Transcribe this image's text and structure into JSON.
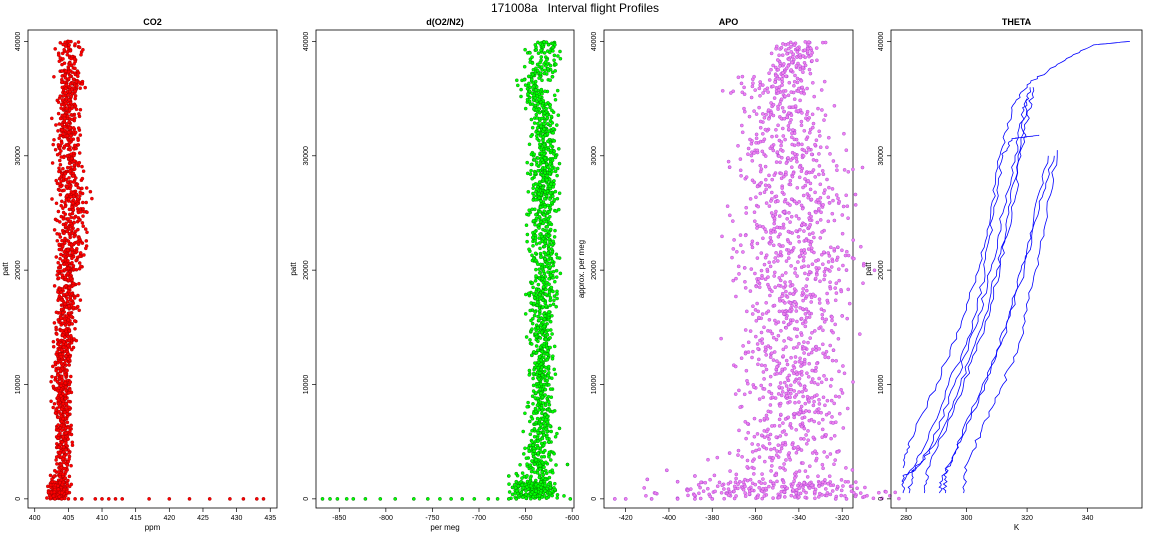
{
  "figure": {
    "title": "171008a   Interval flight Profiles"
  },
  "chart_data": [
    {
      "type": "scatter",
      "title": "CO2",
      "xlabel": "ppm",
      "ylabel": "patt",
      "xlim": [
        399,
        436
      ],
      "ylim": [
        -800,
        41000
      ],
      "xticks": [
        400,
        405,
        410,
        415,
        420,
        425,
        430,
        435
      ],
      "yticks": [
        0,
        10000,
        20000,
        30000,
        40000
      ],
      "colors": {
        "fill": "#ff0000",
        "edge": "#8b0000"
      },
      "profile": [
        [
          0,
          403.2,
          1.0
        ],
        [
          1000,
          403.6,
          1.2
        ],
        [
          3000,
          404.2,
          1.0
        ],
        [
          6000,
          404.3,
          0.9
        ],
        [
          10000,
          404.0,
          0.9
        ],
        [
          15000,
          404.6,
          1.0
        ],
        [
          20000,
          405.0,
          1.2
        ],
        [
          23000,
          405.5,
          1.6
        ],
        [
          26000,
          405.5,
          1.8
        ],
        [
          30000,
          405.2,
          1.4
        ],
        [
          33000,
          404.7,
          1.2
        ],
        [
          35000,
          405.0,
          1.0
        ],
        [
          36500,
          405.5,
          1.6
        ],
        [
          38000,
          405.0,
          0.8
        ],
        [
          39000,
          405.2,
          1.6
        ],
        [
          40000,
          405.0,
          1.2
        ]
      ],
      "outliers": [
        [
          403,
          0
        ],
        [
          404,
          0
        ],
        [
          405,
          0
        ],
        [
          406,
          0
        ],
        [
          407,
          0
        ],
        [
          409,
          0
        ],
        [
          410,
          0
        ],
        [
          411,
          0
        ],
        [
          412,
          0
        ],
        [
          413,
          0
        ],
        [
          417,
          0
        ],
        [
          420,
          0
        ],
        [
          423,
          0
        ],
        [
          426,
          0
        ],
        [
          429,
          0
        ],
        [
          431,
          0
        ],
        [
          433,
          0
        ],
        [
          434,
          0
        ]
      ]
    },
    {
      "type": "scatter",
      "title": "d(O2/N2)",
      "xlabel": "per meg",
      "ylabel": "patt",
      "xlim": [
        -875,
        -598
      ],
      "ylim": [
        -800,
        41000
      ],
      "xticks": [
        -850,
        -800,
        -750,
        -700,
        -650,
        -600
      ],
      "yticks": [
        0,
        10000,
        20000,
        30000,
        40000
      ],
      "colors": {
        "fill": "#00ff00",
        "edge": "#006400"
      },
      "profile": [
        [
          0,
          -638,
          22
        ],
        [
          1000,
          -642,
          16
        ],
        [
          3000,
          -636,
          12
        ],
        [
          6000,
          -633,
          10
        ],
        [
          10000,
          -634,
          9
        ],
        [
          15000,
          -632,
          9
        ],
        [
          20000,
          -630,
          10
        ],
        [
          25000,
          -632,
          10
        ],
        [
          30000,
          -629,
          10
        ],
        [
          33000,
          -630,
          9
        ],
        [
          35000,
          -634,
          12
        ],
        [
          36500,
          -645,
          14
        ],
        [
          38000,
          -628,
          10
        ],
        [
          39000,
          -632,
          12
        ],
        [
          40000,
          -627,
          8
        ]
      ],
      "outliers": [
        [
          -868,
          0
        ],
        [
          -860,
          0
        ],
        [
          -852,
          0
        ],
        [
          -842,
          0
        ],
        [
          -835,
          0
        ],
        [
          -822,
          0
        ],
        [
          -806,
          0
        ],
        [
          -790,
          0
        ],
        [
          -770,
          0
        ],
        [
          -755,
          0
        ],
        [
          -742,
          0
        ],
        [
          -730,
          0
        ],
        [
          -718,
          0
        ],
        [
          -705,
          0
        ],
        [
          -690,
          0
        ],
        [
          -680,
          0
        ],
        [
          -668,
          0
        ],
        [
          -660,
          0
        ],
        [
          -602,
          0
        ],
        [
          -605,
          3000
        ],
        [
          -660,
          2200
        ],
        [
          -668,
          2000
        ],
        [
          -660,
          1500
        ],
        [
          -664,
          1000
        ]
      ]
    },
    {
      "type": "scatter",
      "title": "APO",
      "xlabel": "",
      "ylabel": "approx. per meg",
      "xlim": [
        -430,
        -315
      ],
      "ylim": [
        -800,
        41000
      ],
      "xticks": [
        -420,
        -400,
        -380,
        -360,
        -340,
        -320
      ],
      "yticks": [
        0,
        10000,
        20000,
        30000,
        40000
      ],
      "colors": {
        "fill": "#ee82ee",
        "edge": "#9932cc"
      },
      "profile": [
        [
          0,
          -355,
          44
        ],
        [
          1000,
          -352,
          36
        ],
        [
          2000,
          -348,
          20
        ],
        [
          4000,
          -344,
          18
        ],
        [
          8000,
          -343,
          16
        ],
        [
          12000,
          -344,
          18
        ],
        [
          16000,
          -343,
          18
        ],
        [
          20000,
          -342,
          20
        ],
        [
          24000,
          -343,
          18
        ],
        [
          28000,
          -342,
          18
        ],
        [
          31000,
          -344,
          16
        ],
        [
          33000,
          -347,
          14
        ],
        [
          35000,
          -348,
          14
        ],
        [
          36500,
          -350,
          14
        ],
        [
          38000,
          -343,
          8
        ],
        [
          40000,
          -340,
          8
        ]
      ],
      "outliers": [
        [
          -425,
          0
        ],
        [
          -420,
          0
        ],
        [
          -408,
          0
        ],
        [
          -396,
          0
        ],
        [
          -388,
          0
        ],
        [
          -380,
          0
        ],
        [
          -318,
          0
        ],
        [
          -323,
          0
        ],
        [
          -401,
          2500
        ],
        [
          -388,
          2000
        ],
        [
          -396,
          1500
        ],
        [
          -410,
          1700
        ],
        [
          -372,
          4000
        ],
        [
          -322,
          22000
        ],
        [
          -318,
          20000
        ],
        [
          -324,
          13000
        ],
        [
          -320,
          16000
        ],
        [
          -365,
          20200
        ],
        [
          -372,
          29000
        ]
      ]
    },
    {
      "type": "line",
      "title": "THETA",
      "xlabel": "K",
      "ylabel": "patt",
      "xlim": [
        275,
        358
      ],
      "ylim": [
        -800,
        41000
      ],
      "xticks": [
        280,
        300,
        320,
        340
      ],
      "yticks": [
        0,
        10000,
        20000,
        30000,
        40000
      ],
      "colors": {
        "line": "#0000ff"
      },
      "series": [
        {
          "points": [
            [
              279,
              500
            ],
            [
              279,
              2000
            ],
            [
              283,
              2500
            ],
            [
              290,
              5000
            ],
            [
              298,
              10000
            ],
            [
              305,
              15000
            ],
            [
              310,
              20000
            ],
            [
              315,
              25000
            ],
            [
              318,
              30000
            ],
            [
              320,
              33000
            ],
            [
              322,
              36000
            ]
          ]
        },
        {
          "points": [
            [
              281,
              500
            ],
            [
              282,
              2200
            ],
            [
              288,
              4500
            ],
            [
              296,
              10000
            ],
            [
              303,
              15000
            ],
            [
              308,
              20000
            ],
            [
              312,
              25000
            ],
            [
              316,
              30000
            ],
            [
              319,
              34000
            ],
            [
              321,
              36000
            ]
          ]
        },
        {
          "points": [
            [
              286,
              500
            ],
            [
              287,
              2600
            ],
            [
              292,
              5500
            ],
            [
              299,
              10000
            ],
            [
              306,
              15000
            ],
            [
              311,
              20000
            ],
            [
              314,
              25000
            ],
            [
              317,
              30000
            ],
            [
              320,
              35000
            ]
          ]
        },
        {
          "points": [
            [
              299,
              500
            ],
            [
              300,
              3000
            ],
            [
              305,
              6000
            ],
            [
              312,
              10000
            ],
            [
              318,
              14000
            ],
            [
              322,
              19000
            ],
            [
              326,
              24000
            ],
            [
              330,
              30500
            ]
          ]
        },
        {
          "points": [
            [
              293,
              500
            ],
            [
              293,
              2500
            ],
            [
              298,
              5000
            ],
            [
              306,
              10000
            ],
            [
              313,
              15000
            ],
            [
              318,
              20000
            ],
            [
              322,
              24000
            ],
            [
              327,
              30000
            ]
          ]
        },
        {
          "points": [
            [
              291,
              500
            ],
            [
              292,
              1800
            ],
            [
              296,
              4000
            ],
            [
              304,
              9000
            ],
            [
              312,
              14000
            ],
            [
              319,
              20000
            ],
            [
              324,
              26000
            ],
            [
              329,
              30000
            ]
          ]
        },
        {
          "points": [
            [
              279,
              2700
            ],
            [
              281,
              5000
            ],
            [
              290,
              10000
            ],
            [
              298,
              15000
            ],
            [
              304,
              20000
            ],
            [
              308,
              25000
            ],
            [
              311,
              30000
            ],
            [
              315,
              34000
            ],
            [
              320,
              36200
            ],
            [
              330,
              38000
            ],
            [
              342,
              39700
            ],
            [
              354,
              40000
            ]
          ]
        },
        {
          "points": [
            [
              279,
              1500
            ],
            [
              285,
              4000
            ],
            [
              294,
              10000
            ],
            [
              302,
              15000
            ],
            [
              306,
              20000
            ],
            [
              309,
              25000
            ],
            [
              312,
              30000
            ],
            [
              315,
              31500
            ],
            [
              324,
              31800
            ]
          ]
        }
      ]
    }
  ]
}
